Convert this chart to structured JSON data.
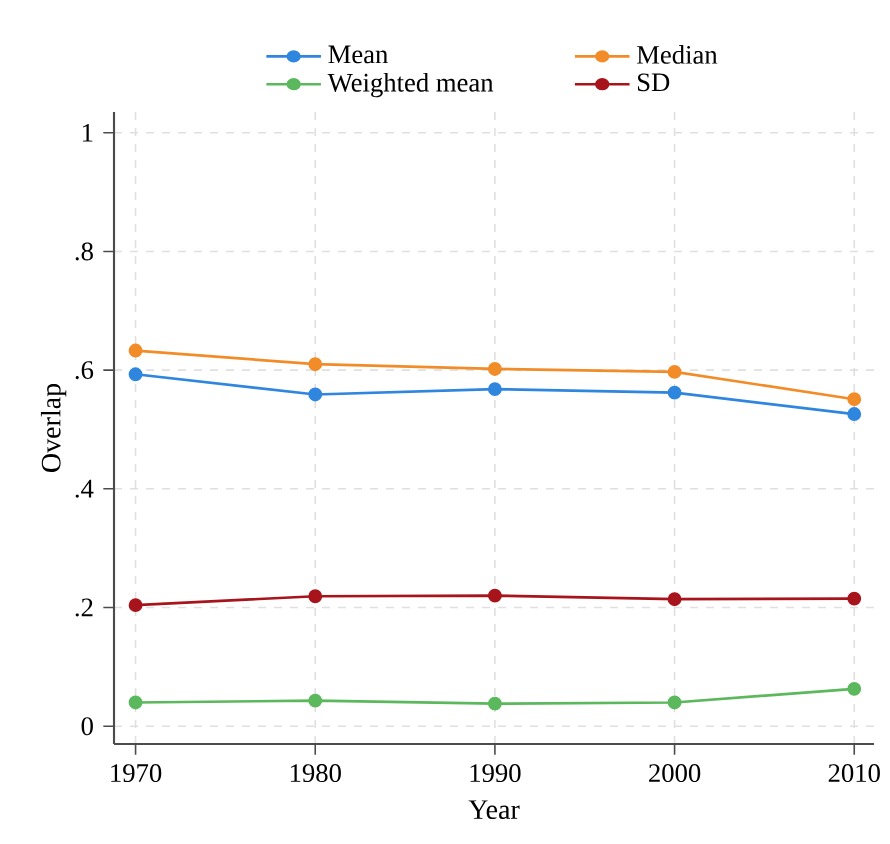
{
  "chart_data": {
    "type": "line",
    "xlabel": "Year",
    "ylabel": "Overlap",
    "x": [
      1970,
      1980,
      1990,
      2000,
      2010
    ],
    "series": [
      {
        "name": "Mean",
        "color": "#2f86de",
        "values": [
          0.593,
          0.559,
          0.568,
          0.562,
          0.526
        ]
      },
      {
        "name": "Median",
        "color": "#f28c28",
        "values": [
          0.633,
          0.61,
          0.602,
          0.597,
          0.551
        ]
      },
      {
        "name": "Weighted mean",
        "color": "#5cb85c",
        "values": [
          0.04,
          0.043,
          0.038,
          0.04,
          0.063
        ]
      },
      {
        "name": "SD",
        "color": "#a8141c",
        "values": [
          0.204,
          0.219,
          0.22,
          0.214,
          0.215
        ]
      }
    ],
    "xlim": [
      1968.8,
      2011.1
    ],
    "ylim": [
      -0.03,
      1.035
    ],
    "xticks": [
      1970,
      1980,
      1990,
      2000,
      2010
    ],
    "yticks": [
      {
        "value": 0,
        "label": "0"
      },
      {
        "value": 0.2,
        "label": ".2"
      },
      {
        "value": 0.4,
        "label": ".4"
      },
      {
        "value": 0.6,
        "label": ".6"
      },
      {
        "value": 0.8,
        "label": ".8"
      },
      {
        "value": 1,
        "label": "1"
      }
    ],
    "grid": true,
    "legend": "top",
    "marker": "circle",
    "line_style": "solid"
  }
}
